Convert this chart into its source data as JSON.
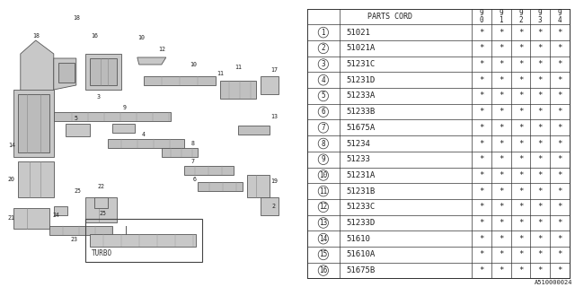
{
  "title": "A510000024",
  "parts_cord_header": "PARTS CORD",
  "year_cols": [
    "9\n0",
    "9\n1",
    "9\n2",
    "9\n3",
    "9\n4"
  ],
  "rows": [
    {
      "num": "1",
      "code": "51021"
    },
    {
      "num": "2",
      "code": "51021A"
    },
    {
      "num": "3",
      "code": "51231C"
    },
    {
      "num": "4",
      "code": "51231D"
    },
    {
      "num": "5",
      "code": "51233A"
    },
    {
      "num": "6",
      "code": "51233B"
    },
    {
      "num": "7",
      "code": "51675A"
    },
    {
      "num": "8",
      "code": "51234"
    },
    {
      "num": "9",
      "code": "51233"
    },
    {
      "num": "10",
      "code": "51231A"
    },
    {
      "num": "11",
      "code": "51231B"
    },
    {
      "num": "12",
      "code": "51233C"
    },
    {
      "num": "13",
      "code": "51233D"
    },
    {
      "num": "14",
      "code": "51610"
    },
    {
      "num": "15",
      "code": "51610A"
    },
    {
      "num": "16",
      "code": "51675B"
    }
  ],
  "bg_color": "#ffffff",
  "table_line_color": "#333333",
  "text_color": "#222222",
  "font_size_table": 6.0,
  "font_size_code": 6.5,
  "font_size_year": 5.5,
  "font_size_title": 5.0
}
